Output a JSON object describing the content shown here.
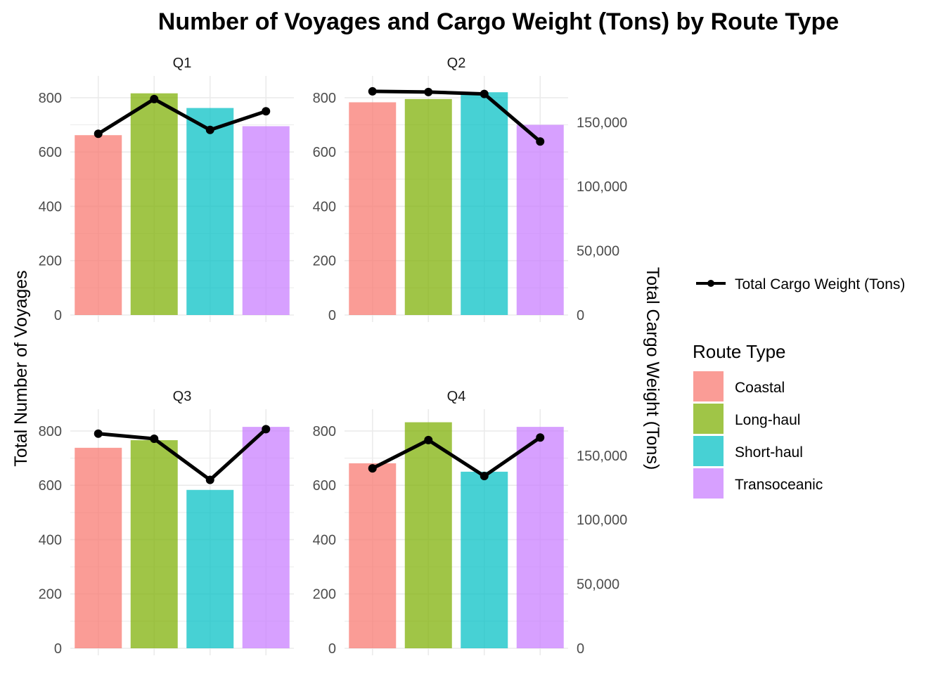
{
  "chart_data": {
    "type": "bar",
    "title": "Number of Voyages and Cargo Weight (Tons) by Route Type",
    "ylabel": "Total Number of Voyages",
    "y2label": "Total Cargo Weight (Tons)",
    "xlabel": "",
    "ylim": [
      0,
      800
    ],
    "y2lim": [
      0,
      150000
    ],
    "yticks": [
      "0",
      "200",
      "400",
      "600",
      "800"
    ],
    "y2ticks": [
      "0",
      "50,000",
      "100,000",
      "150,000"
    ],
    "grid": true,
    "legend_placement": "right",
    "categories": [
      "Coastal",
      "Long-haul",
      "Short-haul",
      "Transoceanic"
    ],
    "colors": [
      "#F8766D",
      "#7CAE00",
      "#00BFC4",
      "#C77CFF"
    ],
    "line_color": "#000000",
    "line_legend_label": "Total Cargo Weight (Tons)",
    "fill_legend_title": "Route Type",
    "panels": [
      {
        "label": "Q1",
        "voyages": [
          662,
          816,
          762,
          695
        ],
        "cargo_tons": [
          141000,
          168000,
          144000,
          158500
        ]
      },
      {
        "label": "Q2",
        "voyages": [
          783,
          795,
          820,
          700
        ],
        "cargo_tons": [
          174000,
          173500,
          172000,
          135000
        ]
      },
      {
        "label": "Q3",
        "voyages": [
          738,
          766,
          583,
          815
        ],
        "cargo_tons": [
          167000,
          163000,
          131000,
          170500
        ]
      },
      {
        "label": "Q4",
        "voyages": [
          681,
          832,
          650,
          815
        ],
        "cargo_tons": [
          140000,
          162000,
          134000,
          164000
        ]
      }
    ]
  }
}
